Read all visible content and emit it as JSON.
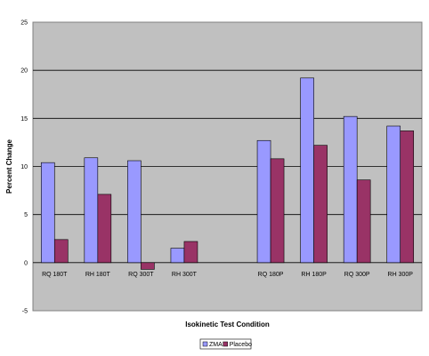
{
  "chart_data": {
    "type": "bar",
    "categories": [
      "RQ 180T",
      "RH 180T",
      "RQ 300T",
      "RH 300T",
      "",
      "RQ 180P",
      "RH 180P",
      "RQ 300P",
      "RH 300P"
    ],
    "series": [
      {
        "name": "ZMA",
        "values": [
          10.4,
          10.9,
          10.6,
          1.5,
          null,
          12.7,
          19.2,
          15.2,
          14.2
        ]
      },
      {
        "name": "Placebo",
        "values": [
          2.4,
          7.1,
          -0.7,
          2.2,
          null,
          10.8,
          12.2,
          8.6,
          13.7
        ]
      }
    ],
    "xlabel": "Isokinetic Test Condition",
    "ylabel": "Percent Change",
    "ylim": [
      -5,
      25
    ],
    "yticks": [
      -5,
      0,
      5,
      10,
      15,
      20,
      25
    ],
    "grid": true,
    "legend": "bottom-center",
    "colors": {
      "ZMA": "#9999ff",
      "Placebo": "#993366",
      "plot_background": "#c0c0c0",
      "gridline": "#000000"
    }
  }
}
